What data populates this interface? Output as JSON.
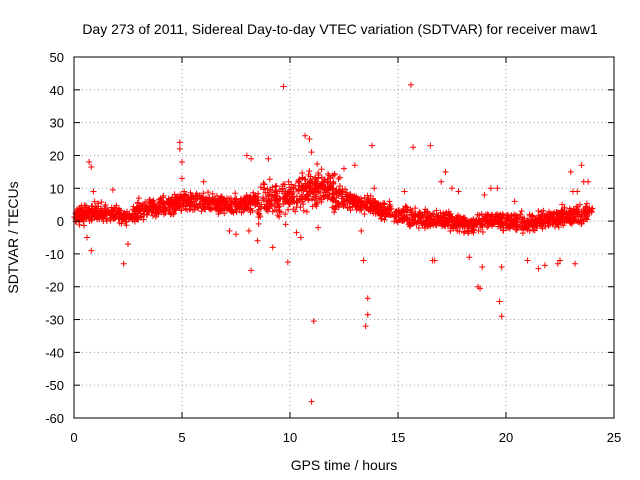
{
  "chart_data": {
    "type": "scatter",
    "title": "Day 273 of 2011, Sidereal Day-to-day VTEC variation (SDTVAR) for receiver maw1",
    "xlabel": "GPS time / hours",
    "ylabel": "SDTVAR / TECUs",
    "xlim": [
      0,
      25
    ],
    "ylim": [
      -60,
      50
    ],
    "xticks": [
      0,
      5,
      10,
      15,
      20,
      25
    ],
    "yticks": [
      -60,
      -50,
      -40,
      -30,
      -20,
      -10,
      0,
      10,
      20,
      30,
      40,
      50
    ],
    "grid": true,
    "marker": "+",
    "color": "#ff0000",
    "series": [
      {
        "name": "SDTVAR",
        "trend": [
          [
            0,
            1.5
          ],
          [
            0.5,
            2
          ],
          [
            1,
            2.5
          ],
          [
            1.5,
            2.5
          ],
          [
            2,
            2
          ],
          [
            2.5,
            1
          ],
          [
            3,
            3
          ],
          [
            3.5,
            4
          ],
          [
            4,
            4.5
          ],
          [
            4.5,
            5
          ],
          [
            5,
            5.5
          ],
          [
            5.5,
            6
          ],
          [
            6,
            6
          ],
          [
            6.5,
            5.5
          ],
          [
            7,
            5
          ],
          [
            7.5,
            5
          ],
          [
            8,
            5.5
          ],
          [
            8.5,
            6
          ],
          [
            9,
            6.5
          ],
          [
            9.5,
            7
          ],
          [
            10,
            8
          ],
          [
            10.5,
            9
          ],
          [
            11,
            10
          ],
          [
            11.5,
            10.5
          ],
          [
            12,
            9
          ],
          [
            12.5,
            7
          ],
          [
            13,
            6
          ],
          [
            13.5,
            5
          ],
          [
            14,
            4
          ],
          [
            14.5,
            3
          ],
          [
            15,
            2
          ],
          [
            15.5,
            1
          ],
          [
            16,
            1
          ],
          [
            16.5,
            0.5
          ],
          [
            17,
            0.5
          ],
          [
            17.5,
            0
          ],
          [
            18,
            -1
          ],
          [
            18.5,
            -1
          ],
          [
            19,
            0
          ],
          [
            19.5,
            0.5
          ],
          [
            20,
            0
          ],
          [
            20.5,
            -0.5
          ],
          [
            21,
            -0.5
          ],
          [
            21.5,
            0
          ],
          [
            22,
            0.5
          ],
          [
            22.5,
            1
          ],
          [
            23,
            1.5
          ],
          [
            23.5,
            2
          ],
          [
            24,
            2.5
          ]
        ],
        "outliers": [
          [
            0.7,
            18
          ],
          [
            0.8,
            16.5
          ],
          [
            0.9,
            9
          ],
          [
            0.6,
            -5
          ],
          [
            0.8,
            -9
          ],
          [
            1.8,
            9.5
          ],
          [
            2.3,
            -13
          ],
          [
            2.5,
            -7
          ],
          [
            3.0,
            7
          ],
          [
            4.5,
            6
          ],
          [
            4.9,
            24
          ],
          [
            4.9,
            22
          ],
          [
            5.0,
            18
          ],
          [
            5.0,
            13
          ],
          [
            5.1,
            9
          ],
          [
            6.0,
            12
          ],
          [
            6.6,
            6
          ],
          [
            7.2,
            -3
          ],
          [
            7.5,
            -4
          ],
          [
            8.0,
            20
          ],
          [
            8.2,
            19
          ],
          [
            8.2,
            -15
          ],
          [
            8.1,
            -3
          ],
          [
            8.5,
            -6
          ],
          [
            9.0,
            19
          ],
          [
            9.2,
            -8
          ],
          [
            9.7,
            41
          ],
          [
            9.8,
            -1
          ],
          [
            9.9,
            -12.5
          ],
          [
            10.3,
            -3.5
          ],
          [
            10.5,
            -5
          ],
          [
            10.7,
            26
          ],
          [
            10.9,
            25
          ],
          [
            11.0,
            21
          ],
          [
            11.0,
            -55
          ],
          [
            11.1,
            -30.5
          ],
          [
            11.3,
            -2
          ],
          [
            12.0,
            10
          ],
          [
            12.5,
            16
          ],
          [
            13.0,
            17
          ],
          [
            13.3,
            -3
          ],
          [
            13.4,
            -12
          ],
          [
            13.5,
            -32
          ],
          [
            13.6,
            -28.5
          ],
          [
            13.6,
            -23.5
          ],
          [
            13.8,
            23
          ],
          [
            13.9,
            10
          ],
          [
            14.2,
            5
          ],
          [
            14.6,
            6
          ],
          [
            15.3,
            9
          ],
          [
            15.6,
            41.5
          ],
          [
            15.7,
            22.5
          ],
          [
            16.3,
            1
          ],
          [
            16.5,
            23
          ],
          [
            16.6,
            -12
          ],
          [
            16.7,
            -12
          ],
          [
            17.0,
            12
          ],
          [
            17.2,
            15
          ],
          [
            17.5,
            10
          ],
          [
            17.8,
            9
          ],
          [
            18.3,
            -11
          ],
          [
            18.7,
            -20
          ],
          [
            18.8,
            -20.5
          ],
          [
            18.9,
            -14
          ],
          [
            19.0,
            8
          ],
          [
            19.3,
            10
          ],
          [
            19.6,
            10
          ],
          [
            19.7,
            -24.5
          ],
          [
            19.8,
            -29
          ],
          [
            19.8,
            -14
          ],
          [
            20.4,
            6
          ],
          [
            21.0,
            -12
          ],
          [
            21.5,
            -14.5
          ],
          [
            21.8,
            -13.5
          ],
          [
            22.4,
            -13
          ],
          [
            22.5,
            -12
          ],
          [
            22.6,
            5
          ],
          [
            23.0,
            15
          ],
          [
            23.1,
            9
          ],
          [
            23.2,
            -13
          ],
          [
            23.3,
            9
          ],
          [
            23.5,
            17
          ],
          [
            23.6,
            12
          ],
          [
            23.8,
            12
          ]
        ]
      }
    ]
  }
}
